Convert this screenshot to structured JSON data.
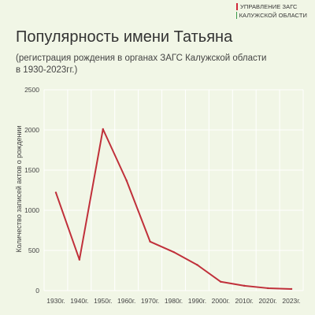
{
  "brand": {
    "lines": [
      "УПРАВЛЕНИЕ ЗАГС",
      "КАЛУЖСКОЙ ОБЛАСТИ"
    ],
    "colors": [
      "#d0283a",
      "#3a9a4a"
    ]
  },
  "chart_data": {
    "type": "line",
    "title": "Популярность имени Татьяна",
    "subtitle_lines": [
      "(регистрация рождения в органах ЗАГС Калужской области",
      "в 1930-2023гг.)"
    ],
    "xlabel": "",
    "ylabel": "Количество записей актов о рождении",
    "categories": [
      "1930г.",
      "1940г.",
      "1950г.",
      "1960г.",
      "1970г.",
      "1980г.",
      "1990г.",
      "2000г.",
      "2010г.",
      "2020г.",
      "2023г."
    ],
    "series": [
      {
        "values": [
          1220,
          385,
          2010,
          1370,
          610,
          480,
          320,
          110,
          60,
          30,
          20
        ],
        "color": "#c0303a"
      }
    ],
    "ylim": [
      0,
      2500
    ],
    "yticks": [
      0,
      500,
      1000,
      1500,
      2000,
      2500
    ],
    "grid": true,
    "legend": "none"
  }
}
